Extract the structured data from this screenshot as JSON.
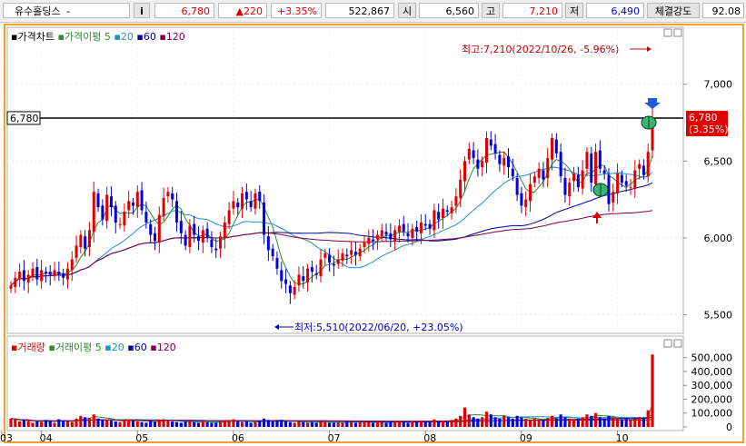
{
  "topbar": {
    "stock_name": "유수홀딩스",
    "stock_suffix": "-",
    "info_button": "i",
    "price": "6,780",
    "change": "▲220",
    "change_pct": "+3.35%",
    "volume": "522,867",
    "open_label": "시",
    "open": "6,560",
    "high_label": "고",
    "high": "7,210",
    "low_label": "저",
    "low": "6,490",
    "strength_label": "체결강도",
    "strength": "92.08"
  },
  "price_panel": {
    "legend_title": "가격차트",
    "legend_ma": "가격이평",
    "ma_periods": [
      "5",
      "20",
      "60",
      "120"
    ],
    "ma_colors": [
      "#2e8b2e",
      "#1e90c8",
      "#0000a0",
      "#800040"
    ],
    "current_price_label": "6,780",
    "current_price_tag": "6,780",
    "current_change_tag": "(3.35%)",
    "high_annotation": "최고:7,210(2022/10/26, -5.96%)",
    "low_annotation": "최저:5,510(2022/06/20, +23.05%)"
  },
  "volume_panel": {
    "legend_title": "거래량",
    "legend_ma": "거래이평",
    "ma_periods": [
      "5",
      "20",
      "60",
      "120"
    ]
  },
  "colors": {
    "up": "#e00000",
    "down": "#0000e0",
    "frame": "#f0a030"
  },
  "chart_data": [
    {
      "type": "candlestick",
      "title": "가격차트",
      "x_ticks": [
        "03",
        "04",
        "05",
        "06",
        "07",
        "08",
        "09",
        "10"
      ],
      "y_ticks": [
        5500,
        6000,
        6500,
        7000
      ],
      "y_tick_labels": [
        "5,500",
        "6,000",
        "6,500",
        "7,000"
      ],
      "ylim": [
        5420,
        7300
      ],
      "reference_line": 6780,
      "last_close": 6780,
      "high": 7210,
      "high_date": "2022/10/26",
      "low": 5510,
      "low_date": "2022/06/20",
      "closes": [
        5690,
        5740,
        5780,
        5720,
        5760,
        5800,
        5730,
        5790,
        5770,
        5760,
        5790,
        5760,
        5740,
        5800,
        5860,
        5950,
        6020,
        5930,
        6050,
        6300,
        6200,
        6120,
        6280,
        6200,
        6100,
        6090,
        6170,
        6240,
        6210,
        6300,
        6180,
        6100,
        6020,
        5980,
        6150,
        6260,
        6300,
        6250,
        6100,
        6030,
        5950,
        6080,
        6020,
        5980,
        6050,
        6000,
        5940,
        5920,
        6010,
        6100,
        6180,
        6240,
        6200,
        6290,
        6250,
        6200,
        6290,
        6240,
        6020,
        5920,
        5880,
        5800,
        5720,
        5700,
        5640,
        5680,
        5760,
        5720,
        5800,
        5780,
        5760,
        5860,
        5900,
        5840,
        5820,
        5860,
        5900,
        5880,
        5920,
        5890,
        5930,
        5970,
        6000,
        5980,
        6020,
        6050,
        6020,
        5990,
        6050,
        6080,
        6040,
        6010,
        6060,
        6040,
        6100,
        6080,
        6060,
        6180,
        6120,
        6190,
        6170,
        6200,
        6270,
        6380,
        6500,
        6580,
        6520,
        6450,
        6500,
        6650,
        6600,
        6550,
        6480,
        6520,
        6460,
        6400,
        6280,
        6210,
        6250,
        6350,
        6400,
        6450,
        6380,
        6520,
        6650,
        6550,
        6400,
        6280,
        6360,
        6420,
        6330,
        6440,
        6560,
        6360,
        6560,
        6450,
        6420,
        6220,
        6300,
        6420,
        6360,
        6340,
        6330,
        6440,
        6480,
        6410,
        6560,
        6780
      ],
      "volumes": [
        60,
        55,
        40,
        50,
        45,
        30,
        40,
        35,
        50,
        40,
        30,
        55,
        45,
        40,
        35,
        60,
        80,
        70,
        65,
        90,
        60,
        55,
        50,
        45,
        40,
        35,
        50,
        55,
        45,
        40,
        35,
        30,
        45,
        40,
        50,
        55,
        45,
        40,
        35,
        30,
        40,
        45,
        35,
        30,
        40,
        35,
        30,
        30,
        40,
        45,
        50,
        55,
        40,
        35,
        40,
        30,
        35,
        45,
        60,
        50,
        40,
        45,
        50,
        40,
        35,
        30,
        40,
        35,
        30,
        35,
        30,
        40,
        35,
        30,
        30,
        35,
        30,
        40,
        35,
        30,
        35,
        40,
        35,
        30,
        40,
        35,
        30,
        35,
        40,
        45,
        35,
        30,
        40,
        35,
        45,
        40,
        35,
        55,
        40,
        45,
        40,
        50,
        60,
        80,
        140,
        90,
        70,
        60,
        70,
        110,
        90,
        70,
        60,
        80,
        70,
        60,
        80,
        70,
        60,
        50,
        60,
        55,
        50,
        65,
        80,
        60,
        90,
        70,
        60,
        55,
        60,
        70,
        90,
        80,
        100,
        70,
        60,
        80,
        70,
        60,
        55,
        60,
        50,
        60,
        70,
        60,
        120,
        522
      ]
    },
    {
      "type": "bar",
      "title": "거래량",
      "y_ticks": [
        0,
        100000,
        200000,
        300000,
        400000,
        500000
      ],
      "y_tick_labels": [
        "0",
        "100,000",
        "200,000",
        "300,000",
        "400,000",
        "500,000"
      ]
    }
  ]
}
